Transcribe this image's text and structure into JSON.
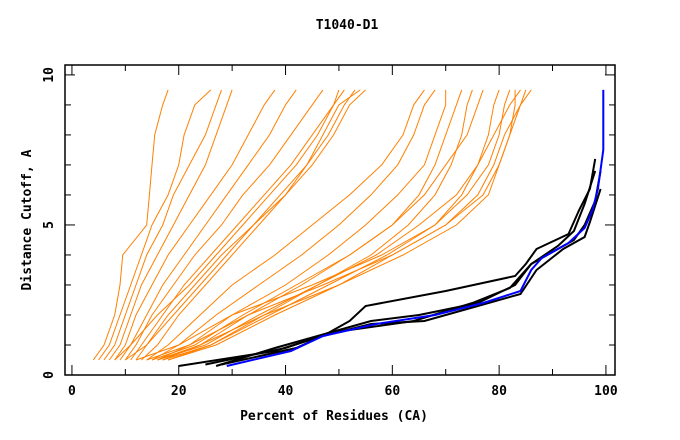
{
  "chart_data": {
    "type": "line",
    "title": "T1040-D1",
    "xlabel": "Percent of Residues (CA)",
    "ylabel": "Distance Cutoff, A",
    "xlim": [
      -1.3,
      101.7
    ],
    "ylim": [
      0,
      10.33
    ],
    "x_ticks": [
      0,
      20,
      40,
      60,
      80,
      100
    ],
    "y_ticks": [
      0,
      5,
      10
    ],
    "grid": false,
    "colors": {
      "models": "#ff8000",
      "references": "#000000",
      "highlight": "#0000ff"
    },
    "model_cutoffs": [
      0.5,
      1,
      2,
      3,
      4,
      5,
      6,
      7,
      8,
      9,
      9.5
    ],
    "model_series": [
      [
        4,
        6,
        8,
        9,
        9.5,
        14,
        14.5,
        15,
        15.5,
        17,
        18
      ],
      [
        5,
        7,
        9,
        11,
        13,
        15,
        18,
        20,
        21,
        23,
        26
      ],
      [
        6,
        8,
        10,
        12,
        14,
        17,
        19,
        22,
        25,
        27,
        28
      ],
      [
        7,
        9,
        11,
        13,
        16,
        19,
        22,
        25,
        27,
        29,
        30
      ],
      [
        8,
        10,
        12,
        15,
        18,
        22,
        26,
        30,
        33,
        36,
        38
      ],
      [
        9,
        11,
        14,
        17,
        21,
        25,
        29,
        33,
        37,
        40,
        42
      ],
      [
        10,
        12,
        15,
        19,
        23,
        28,
        32,
        37,
        41,
        45,
        47
      ],
      [
        11,
        13,
        17,
        21,
        26,
        31,
        36,
        41,
        45,
        49,
        51
      ],
      [
        12,
        14,
        18,
        23,
        28,
        34,
        39,
        44,
        48,
        51,
        53
      ],
      [
        13,
        16,
        20,
        25,
        30,
        35,
        40,
        45,
        49,
        52,
        55
      ],
      [
        8,
        11,
        16,
        22,
        27,
        32,
        37,
        42,
        46,
        49,
        50
      ],
      [
        10,
        14,
        19,
        24,
        29,
        34,
        40,
        44,
        47,
        50,
        54
      ],
      [
        14,
        18,
        24,
        30,
        38,
        45,
        52,
        58,
        62,
        64,
        66
      ],
      [
        15,
        20,
        27,
        35,
        43,
        50,
        56,
        61,
        64,
        66,
        68
      ],
      [
        16,
        22,
        30,
        40,
        48,
        55,
        61,
        66,
        68,
        70,
        70
      ],
      [
        17,
        24,
        33,
        43,
        52,
        60,
        65,
        68,
        70,
        72,
        73
      ],
      [
        18,
        26,
        36,
        46,
        56,
        63,
        68,
        71,
        73,
        74,
        75
      ],
      [
        15,
        23,
        32,
        42,
        52,
        60,
        66,
        70,
        74,
        76,
        77
      ],
      [
        16,
        25,
        35,
        46,
        57,
        65,
        72,
        76,
        78,
        79,
        80
      ],
      [
        17,
        26,
        37,
        48,
        59,
        68,
        74,
        78,
        80,
        81,
        82
      ],
      [
        18,
        27,
        38,
        50,
        60,
        70,
        77,
        80,
        82,
        83,
        83
      ],
      [
        12,
        20,
        30,
        45,
        58,
        68,
        73,
        76,
        79,
        82,
        84
      ],
      [
        14,
        22,
        33,
        47,
        60,
        70,
        76,
        79,
        81,
        84,
        85
      ],
      [
        16,
        24,
        36,
        50,
        62,
        72,
        78,
        80,
        82,
        84,
        86
      ]
    ],
    "reference_series": [
      [
        [
          20,
          0.3
        ],
        [
          38,
          0.8
        ],
        [
          47,
          1.3
        ],
        [
          52,
          1.8
        ],
        [
          55,
          2.3
        ],
        [
          70,
          2.8
        ],
        [
          83,
          3.3
        ],
        [
          85,
          3.7
        ],
        [
          87,
          4.2
        ],
        [
          93,
          4.7
        ],
        [
          95,
          5.5
        ],
        [
          97,
          6.2
        ],
        [
          98,
          7.2
        ]
      ],
      [
        [
          27,
          0.3
        ],
        [
          38,
          0.9
        ],
        [
          46,
          1.3
        ],
        [
          56,
          1.8
        ],
        [
          65,
          2.0
        ],
        [
          76,
          2.4
        ],
        [
          83,
          3.0
        ],
        [
          86,
          3.7
        ],
        [
          89,
          4.0
        ],
        [
          94,
          4.5
        ],
        [
          96,
          5.0
        ],
        [
          98,
          5.8
        ],
        [
          99,
          6.8
        ]
      ],
      [
        [
          28,
          0.35
        ],
        [
          42,
          0.9
        ],
        [
          47,
          1.3
        ],
        [
          56,
          1.7
        ],
        [
          66,
          1.8
        ],
        [
          76,
          2.3
        ],
        [
          84,
          2.7
        ],
        [
          87,
          3.5
        ],
        [
          92,
          4.2
        ],
        [
          96,
          4.6
        ],
        [
          97,
          5.1
        ],
        [
          99,
          6.2
        ]
      ],
      [
        [
          25,
          0.35
        ],
        [
          40,
          0.9
        ],
        [
          48,
          1.4
        ],
        [
          56,
          1.6
        ],
        [
          64,
          1.8
        ],
        [
          75,
          2.4
        ],
        [
          82,
          2.9
        ],
        [
          86,
          3.7
        ],
        [
          91,
          4.3
        ],
        [
          94,
          4.8
        ],
        [
          96,
          5.7
        ],
        [
          98,
          6.8
        ]
      ]
    ],
    "highlight_series": [
      [
        29,
        0.3
      ],
      [
        41,
        0.8
      ],
      [
        47,
        1.3
      ],
      [
        57,
        1.7
      ],
      [
        68,
        2.0
      ],
      [
        77,
        2.4
      ],
      [
        84,
        2.8
      ],
      [
        86,
        3.5
      ],
      [
        88,
        3.9
      ],
      [
        93,
        4.4
      ],
      [
        96,
        4.9
      ],
      [
        97.5,
        5.5
      ],
      [
        98.5,
        6.2
      ],
      [
        99.5,
        7.5
      ],
      [
        99.5,
        9.5
      ]
    ]
  }
}
